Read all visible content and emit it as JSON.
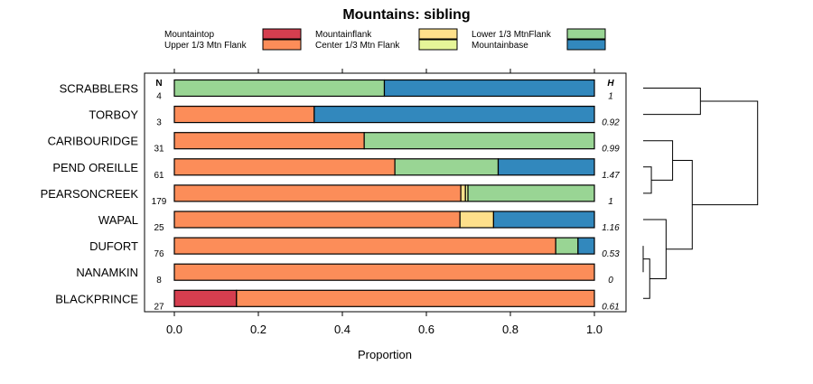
{
  "chart_data": {
    "type": "bar",
    "orientation": "horizontal",
    "stacked": true,
    "title": "Mountains: sibling",
    "xlabel": "Proportion",
    "xlim": [
      0,
      1
    ],
    "xticks": [
      "0.0",
      "0.2",
      "0.4",
      "0.6",
      "0.8",
      "1.0"
    ],
    "n_header": "N",
    "h_header": "H",
    "categories": [
      "SCRABBLERS",
      "TORBOY",
      "CARIBOURIDGE",
      "PEND OREILLE",
      "PEARSONCREEK",
      "WAPAL",
      "DUFORT",
      "NANAMKIN",
      "BLACKPRINCE"
    ],
    "n": [
      "4",
      "3",
      "31",
      "61",
      "179",
      "25",
      "76",
      "8",
      "27"
    ],
    "h": [
      "1",
      "0.92",
      "0.99",
      "1.47",
      "1",
      "1.16",
      "0.53",
      "0",
      "0.61"
    ],
    "series": [
      {
        "name": "Mountaintop",
        "color": "#d53e4f",
        "values": [
          0,
          0,
          0,
          0,
          0,
          0,
          0,
          0,
          0.148
        ]
      },
      {
        "name": "Upper 1/3 Mtn Flank",
        "color": "#fc8d59",
        "values": [
          0,
          0.333,
          0.452,
          0.525,
          0.682,
          0.68,
          0.908,
          1.0,
          0.852
        ]
      },
      {
        "name": "Mountainflank",
        "color": "#fee08b",
        "values": [
          0,
          0,
          0,
          0,
          0.011,
          0.08,
          0,
          0,
          0
        ]
      },
      {
        "name": "Center 1/3 Mtn Flank",
        "color": "#e6f598",
        "values": [
          0,
          0,
          0,
          0,
          0.006,
          0,
          0,
          0,
          0
        ]
      },
      {
        "name": "Lower 1/3 MtnFlank",
        "color": "#99d594",
        "values": [
          0.5,
          0,
          0.548,
          0.246,
          0.301,
          0,
          0.053,
          0,
          0
        ]
      },
      {
        "name": "Mountainbase",
        "color": "#3288bd",
        "values": [
          0.5,
          0.667,
          0,
          0.229,
          0,
          0.24,
          0.039,
          0,
          0
        ]
      }
    ],
    "dendrogram": {
      "merge_order": [
        [
          "SCRABBLERS",
          "TORBOY"
        ],
        [
          "PEND OREILLE",
          "PEARSONCREEK"
        ],
        [
          "CARIBOURIDGE",
          "PEND OREILLE+PEARSONCREEK"
        ],
        [
          "DUFORT",
          "NANAMKIN"
        ],
        [
          "BLACKPRINCE",
          "DUFORT+NANAMKIN"
        ],
        [
          "WAPAL",
          "BLACKPRINCE+DUFORT+NANAMKIN"
        ],
        [
          "CARIBOURIDGE+PEND OREILLE+PEARSONCREEK",
          "WAPAL+BLACKPRINCE+DUFORT+NANAMKIN"
        ],
        [
          "SCRABBLERS+TORBOY",
          "rest"
        ]
      ],
      "heights": [
        0.35,
        0.05,
        0.18,
        0.0,
        0.04,
        0.14,
        0.3,
        0.7
      ]
    }
  }
}
